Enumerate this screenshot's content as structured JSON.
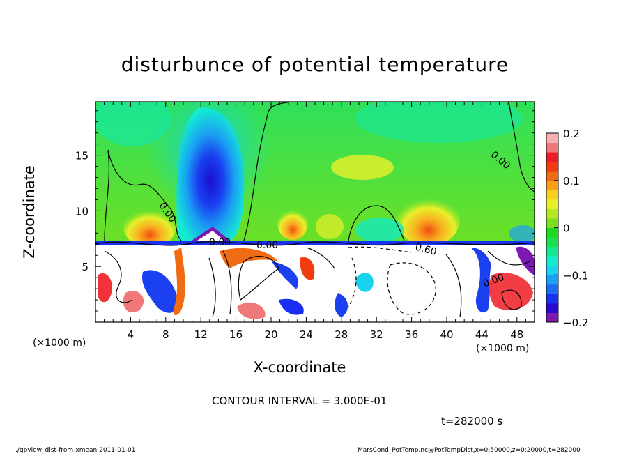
{
  "chart_data": {
    "type": "heatmap",
    "title": "disturbunce of potential temperature",
    "xlabel": "X-coordinate",
    "ylabel": "Z-coordinate",
    "x_unit_label": "(×1000 m)",
    "x_unit_label_right": "(×1000 m)",
    "xlim": [
      0,
      50
    ],
    "ylim": [
      0,
      19.8
    ],
    "x_ticks": [
      4,
      8,
      12,
      16,
      20,
      24,
      28,
      32,
      36,
      40,
      44,
      48
    ],
    "y_ticks": [
      5,
      10,
      15
    ],
    "colorbar": {
      "range": [
        -0.2,
        0.2
      ],
      "ticks": [
        "0.2",
        "0.1",
        "0",
        "−0.1",
        "−0.2"
      ],
      "tick_values": [
        0.2,
        0.1,
        0,
        -0.1,
        -0.2
      ],
      "colors": [
        "#7a1ab0",
        "#2a0ad0",
        "#1a30f0",
        "#1c6cf6",
        "#1aa0f4",
        "#18d2f0",
        "#14ecd0",
        "#14e890",
        "#18e050",
        "#20d820",
        "#7ae020",
        "#b4e824",
        "#e8f02a",
        "#f8d020",
        "#f8a018",
        "#f06c14",
        "#f03c10",
        "#ee1c24",
        "#f07878",
        "#f8b0b0"
      ]
    },
    "contour_labels": [
      "0.00",
      "0.00",
      "0.00",
      "0.00",
      "0.60",
      "0.00"
    ],
    "contour_interval_text": "CONTOUR INTERVAL = 3.000E-01",
    "time_text": "t=282000 s",
    "grid": false
  },
  "footer": {
    "left": "./gpview_dist-from-xmean   2011-01-01",
    "right": "MarsCond_PotTemp.nc@PotTempDist,x=0:50000,z=0:20000,t=282000"
  }
}
